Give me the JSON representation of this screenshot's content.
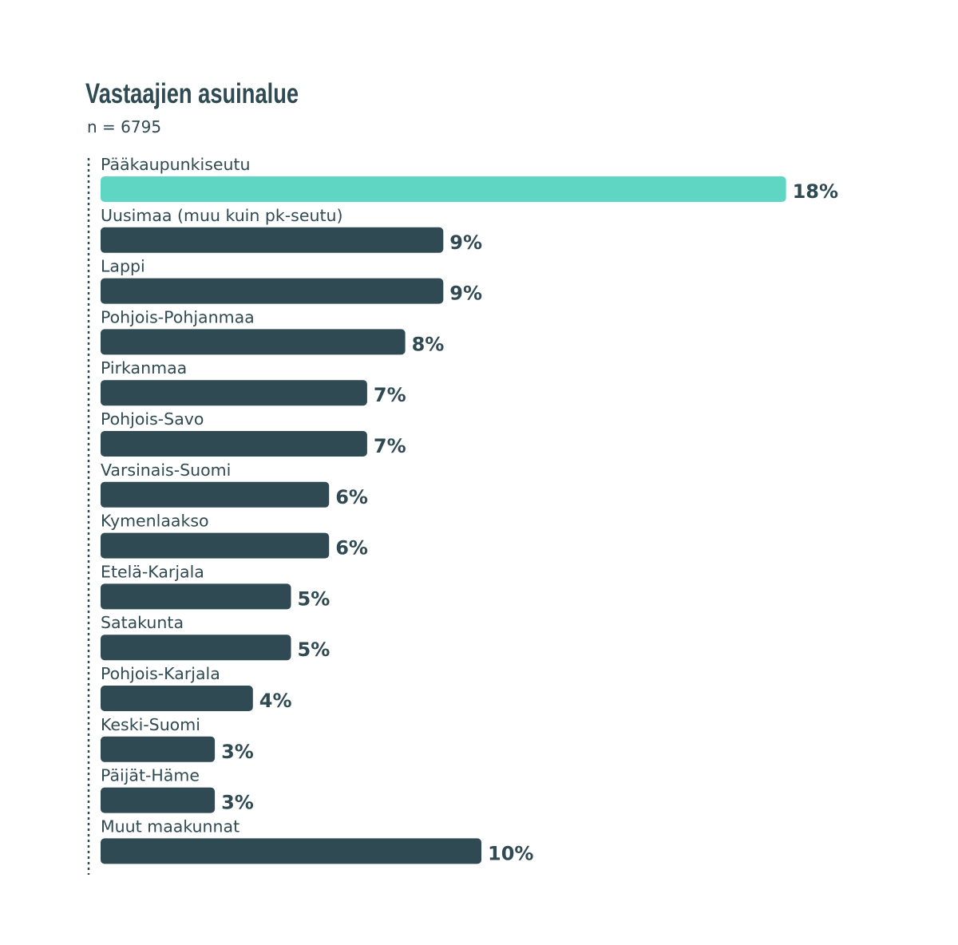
{
  "chart_data": {
    "type": "bar",
    "orientation": "horizontal",
    "title": "Vastaajien asuinalue",
    "subtitle": "n = 6795",
    "categories": [
      "Pääkaupunkiseutu",
      "Uusimaa (muu kuin pk-seutu)",
      "Lappi",
      "Pohjois-Pohjanmaa",
      "Pirkanmaa",
      "Pohjois-Savo",
      "Varsinais-Suomi",
      "Kymenlaakso",
      "Etelä-Karjala",
      "Satakunta",
      "Pohjois-Karjala",
      "Keski-Suomi",
      "Päijät-Häme",
      "Muut maakunnat"
    ],
    "values": [
      18,
      9,
      9,
      8,
      7,
      7,
      6,
      6,
      5,
      5,
      4,
      3,
      3,
      10
    ],
    "value_labels": [
      "18%",
      "9%",
      "9%",
      "8%",
      "7%",
      "7%",
      "6%",
      "6%",
      "5%",
      "5%",
      "4%",
      "3%",
      "3%",
      "10%"
    ],
    "unit": "%",
    "highlight_index": 0,
    "colors": {
      "highlight": "#5fd6c4",
      "default": "#2f4a52",
      "text": "#2f4a52",
      "axis": "#2f4a52"
    },
    "grid": false,
    "legend": "none"
  }
}
